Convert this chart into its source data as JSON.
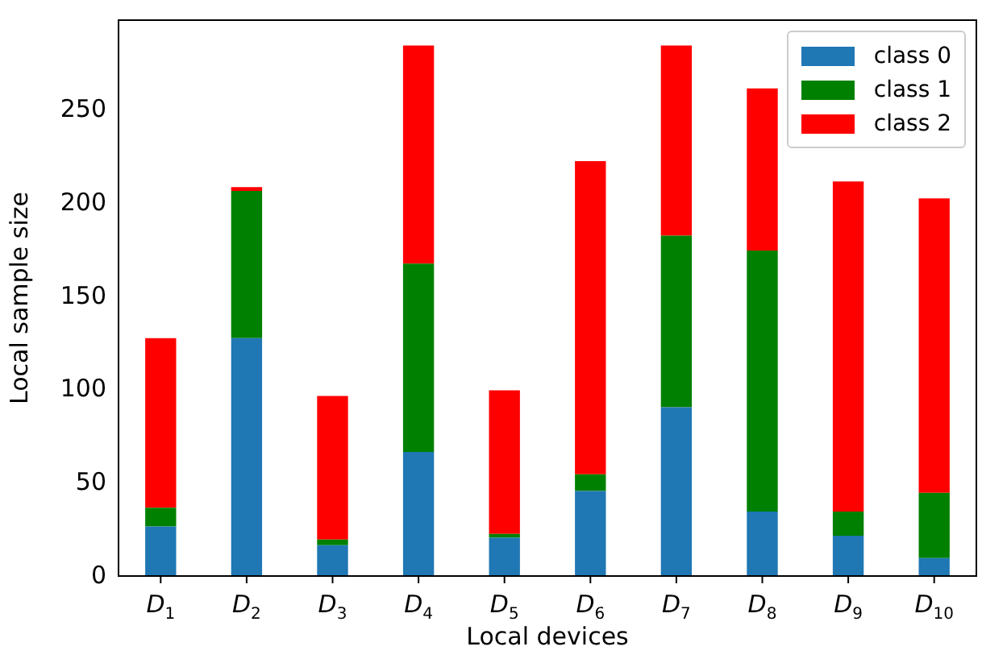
{
  "chart_data": {
    "type": "bar",
    "stacked": true,
    "xlabel": "Local devices",
    "ylabel": "Local sample size",
    "categories": [
      "D$_{1}$",
      "D$_{2}$",
      "D$_{3}$",
      "D$_{4}$",
      "D$_{5}$",
      "D$_{6}$",
      "D$_{7}$",
      "D$_{8}$",
      "D$_{9}$",
      "D$_{10}$"
    ],
    "series": [
      {
        "name": "class 0",
        "color": "#1f77b4",
        "values": [
          27,
          128,
          17,
          67,
          21,
          46,
          91,
          35,
          22,
          10
        ]
      },
      {
        "name": "class 1",
        "color": "#008000",
        "values": [
          10,
          79,
          3,
          101,
          2,
          9,
          92,
          140,
          13,
          35
        ]
      },
      {
        "name": "class 2",
        "color": "#ff0000",
        "values": [
          91,
          2,
          77,
          117,
          77,
          168,
          102,
          87,
          177,
          158
        ]
      }
    ],
    "ylim": [
      0,
      299
    ],
    "yticks": [
      0,
      50,
      100,
      150,
      200,
      250
    ],
    "grid": false,
    "legend": "top right"
  }
}
